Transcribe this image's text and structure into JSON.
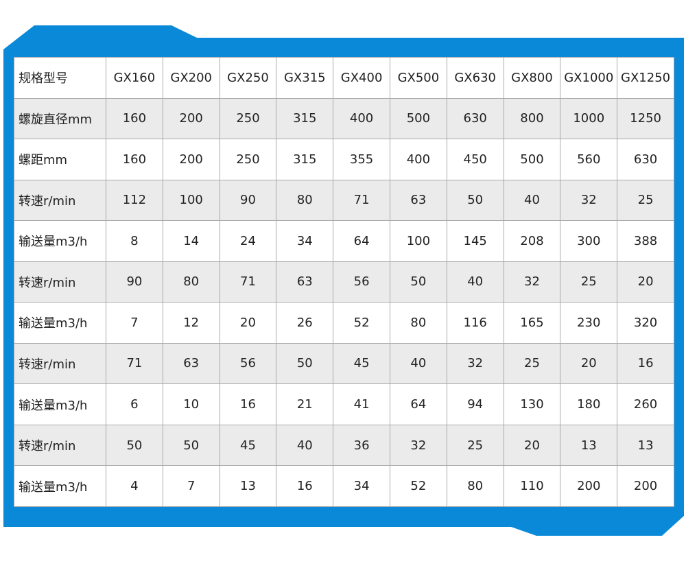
{
  "colors": {
    "frame": "#0a89d9",
    "alt_row": "#ebebeb",
    "border": "#a8a8a8"
  },
  "table": {
    "header": [
      "规格型号",
      "GX160",
      "GX200",
      "GX250",
      "GX315",
      "GX400",
      "GX500",
      "GX630",
      "GX800",
      "GX1000",
      "GX1250"
    ],
    "rows": [
      [
        "螺旋直径mm",
        "160",
        "200",
        "250",
        "315",
        "400",
        "500",
        "630",
        "800",
        "1000",
        "1250"
      ],
      [
        "螺距mm",
        "160",
        "200",
        "250",
        "315",
        "355",
        "400",
        "450",
        "500",
        "560",
        "630"
      ],
      [
        "转速r/min",
        "112",
        "100",
        "90",
        "80",
        "71",
        "63",
        "50",
        "40",
        "32",
        "25"
      ],
      [
        "输送量m3/h",
        "8",
        "14",
        "24",
        "34",
        "64",
        "100",
        "145",
        "208",
        "300",
        "388"
      ],
      [
        "转速r/min",
        "90",
        "80",
        "71",
        "63",
        "56",
        "50",
        "40",
        "32",
        "25",
        "20"
      ],
      [
        "输送量m3/h",
        "7",
        "12",
        "20",
        "26",
        "52",
        "80",
        "116",
        "165",
        "230",
        "320"
      ],
      [
        "转速r/min",
        "71",
        "63",
        "56",
        "50",
        "45",
        "40",
        "32",
        "25",
        "20",
        "16"
      ],
      [
        "输送量m3/h",
        "6",
        "10",
        "16",
        "21",
        "41",
        "64",
        "94",
        "130",
        "180",
        "260"
      ],
      [
        "转速r/min",
        "50",
        "50",
        "45",
        "40",
        "36",
        "32",
        "25",
        "20",
        "13",
        "13"
      ],
      [
        "输送量m3/h",
        "4",
        "7",
        "13",
        "16",
        "34",
        "52",
        "80",
        "110",
        "200",
        "200"
      ]
    ]
  }
}
